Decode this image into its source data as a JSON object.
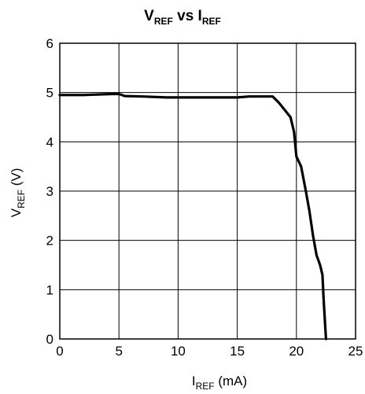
{
  "chart_data": {
    "type": "line",
    "title": {
      "main": "V",
      "main_sub": "REF",
      "mid": " vs I",
      "mid_sub": "REF"
    },
    "xlabel": {
      "main": "I",
      "sub": "REF",
      "rest": " (mA)"
    },
    "ylabel": {
      "main": "V",
      "sub": "REF",
      "rest": " (V)"
    },
    "xlim": [
      0,
      25
    ],
    "ylim": [
      0,
      6
    ],
    "xticks": [
      "0",
      "5",
      "10",
      "15",
      "20",
      "25"
    ],
    "yticks": [
      "0",
      "1",
      "2",
      "3",
      "4",
      "5",
      "6"
    ],
    "grid": true,
    "series": [
      {
        "x": [
          0,
          2,
          4.5,
          5,
          5.5,
          7,
          9,
          12,
          15,
          16,
          18,
          18.5,
          19,
          19.5,
          19.8,
          20,
          20.4,
          20.8,
          21.1,
          21.4,
          21.7,
          22,
          22.2,
          22.3,
          22.5
        ],
        "y": [
          4.95,
          4.95,
          4.97,
          4.97,
          4.93,
          4.92,
          4.9,
          4.9,
          4.9,
          4.92,
          4.92,
          4.8,
          4.65,
          4.5,
          4.2,
          3.7,
          3.5,
          3.0,
          2.6,
          2.1,
          1.7,
          1.5,
          1.3,
          0.8,
          0.0
        ]
      }
    ]
  }
}
